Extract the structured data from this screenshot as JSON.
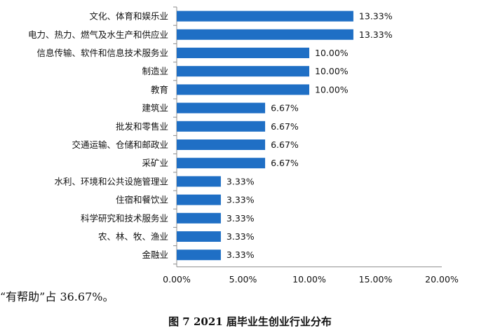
{
  "chart_data": {
    "type": "bar",
    "orientation": "horizontal",
    "categories": [
      "文化、体育和娱乐业",
      "电力、热力、燃气及水生产和供应业",
      "信息传输、软件和信息技术服务业",
      "制造业",
      "教育",
      "建筑业",
      "批发和零售业",
      "交通运输、仓储和邮政业",
      "采矿业",
      "水利、环境和公共设施管理业",
      "住宿和餐饮业",
      "科学研究和技术服务业",
      "农、林、牧、渔业",
      "金融业"
    ],
    "values": [
      13.33,
      13.33,
      10.0,
      10.0,
      10.0,
      6.67,
      6.67,
      6.67,
      6.67,
      3.33,
      3.33,
      3.33,
      3.33,
      3.33
    ],
    "value_labels": [
      "13.33%",
      "13.33%",
      "10.00%",
      "10.00%",
      "10.00%",
      "6.67%",
      "6.67%",
      "6.67%",
      "6.67%",
      "3.33%",
      "3.33%",
      "3.33%",
      "3.33%",
      "3.33%"
    ],
    "xlim": [
      0,
      20
    ],
    "x_ticks": [
      0,
      5,
      10,
      15,
      20
    ],
    "x_tick_labels": [
      "0.00%",
      "5.00%",
      "10.00%",
      "15.00%",
      "20.00%"
    ],
    "grid": false,
    "bar_color": "#1f6fc5"
  },
  "body_text": "“有帮助”占 36.67%。",
  "caption": "图 7  2021 届毕业生创业行业分布"
}
